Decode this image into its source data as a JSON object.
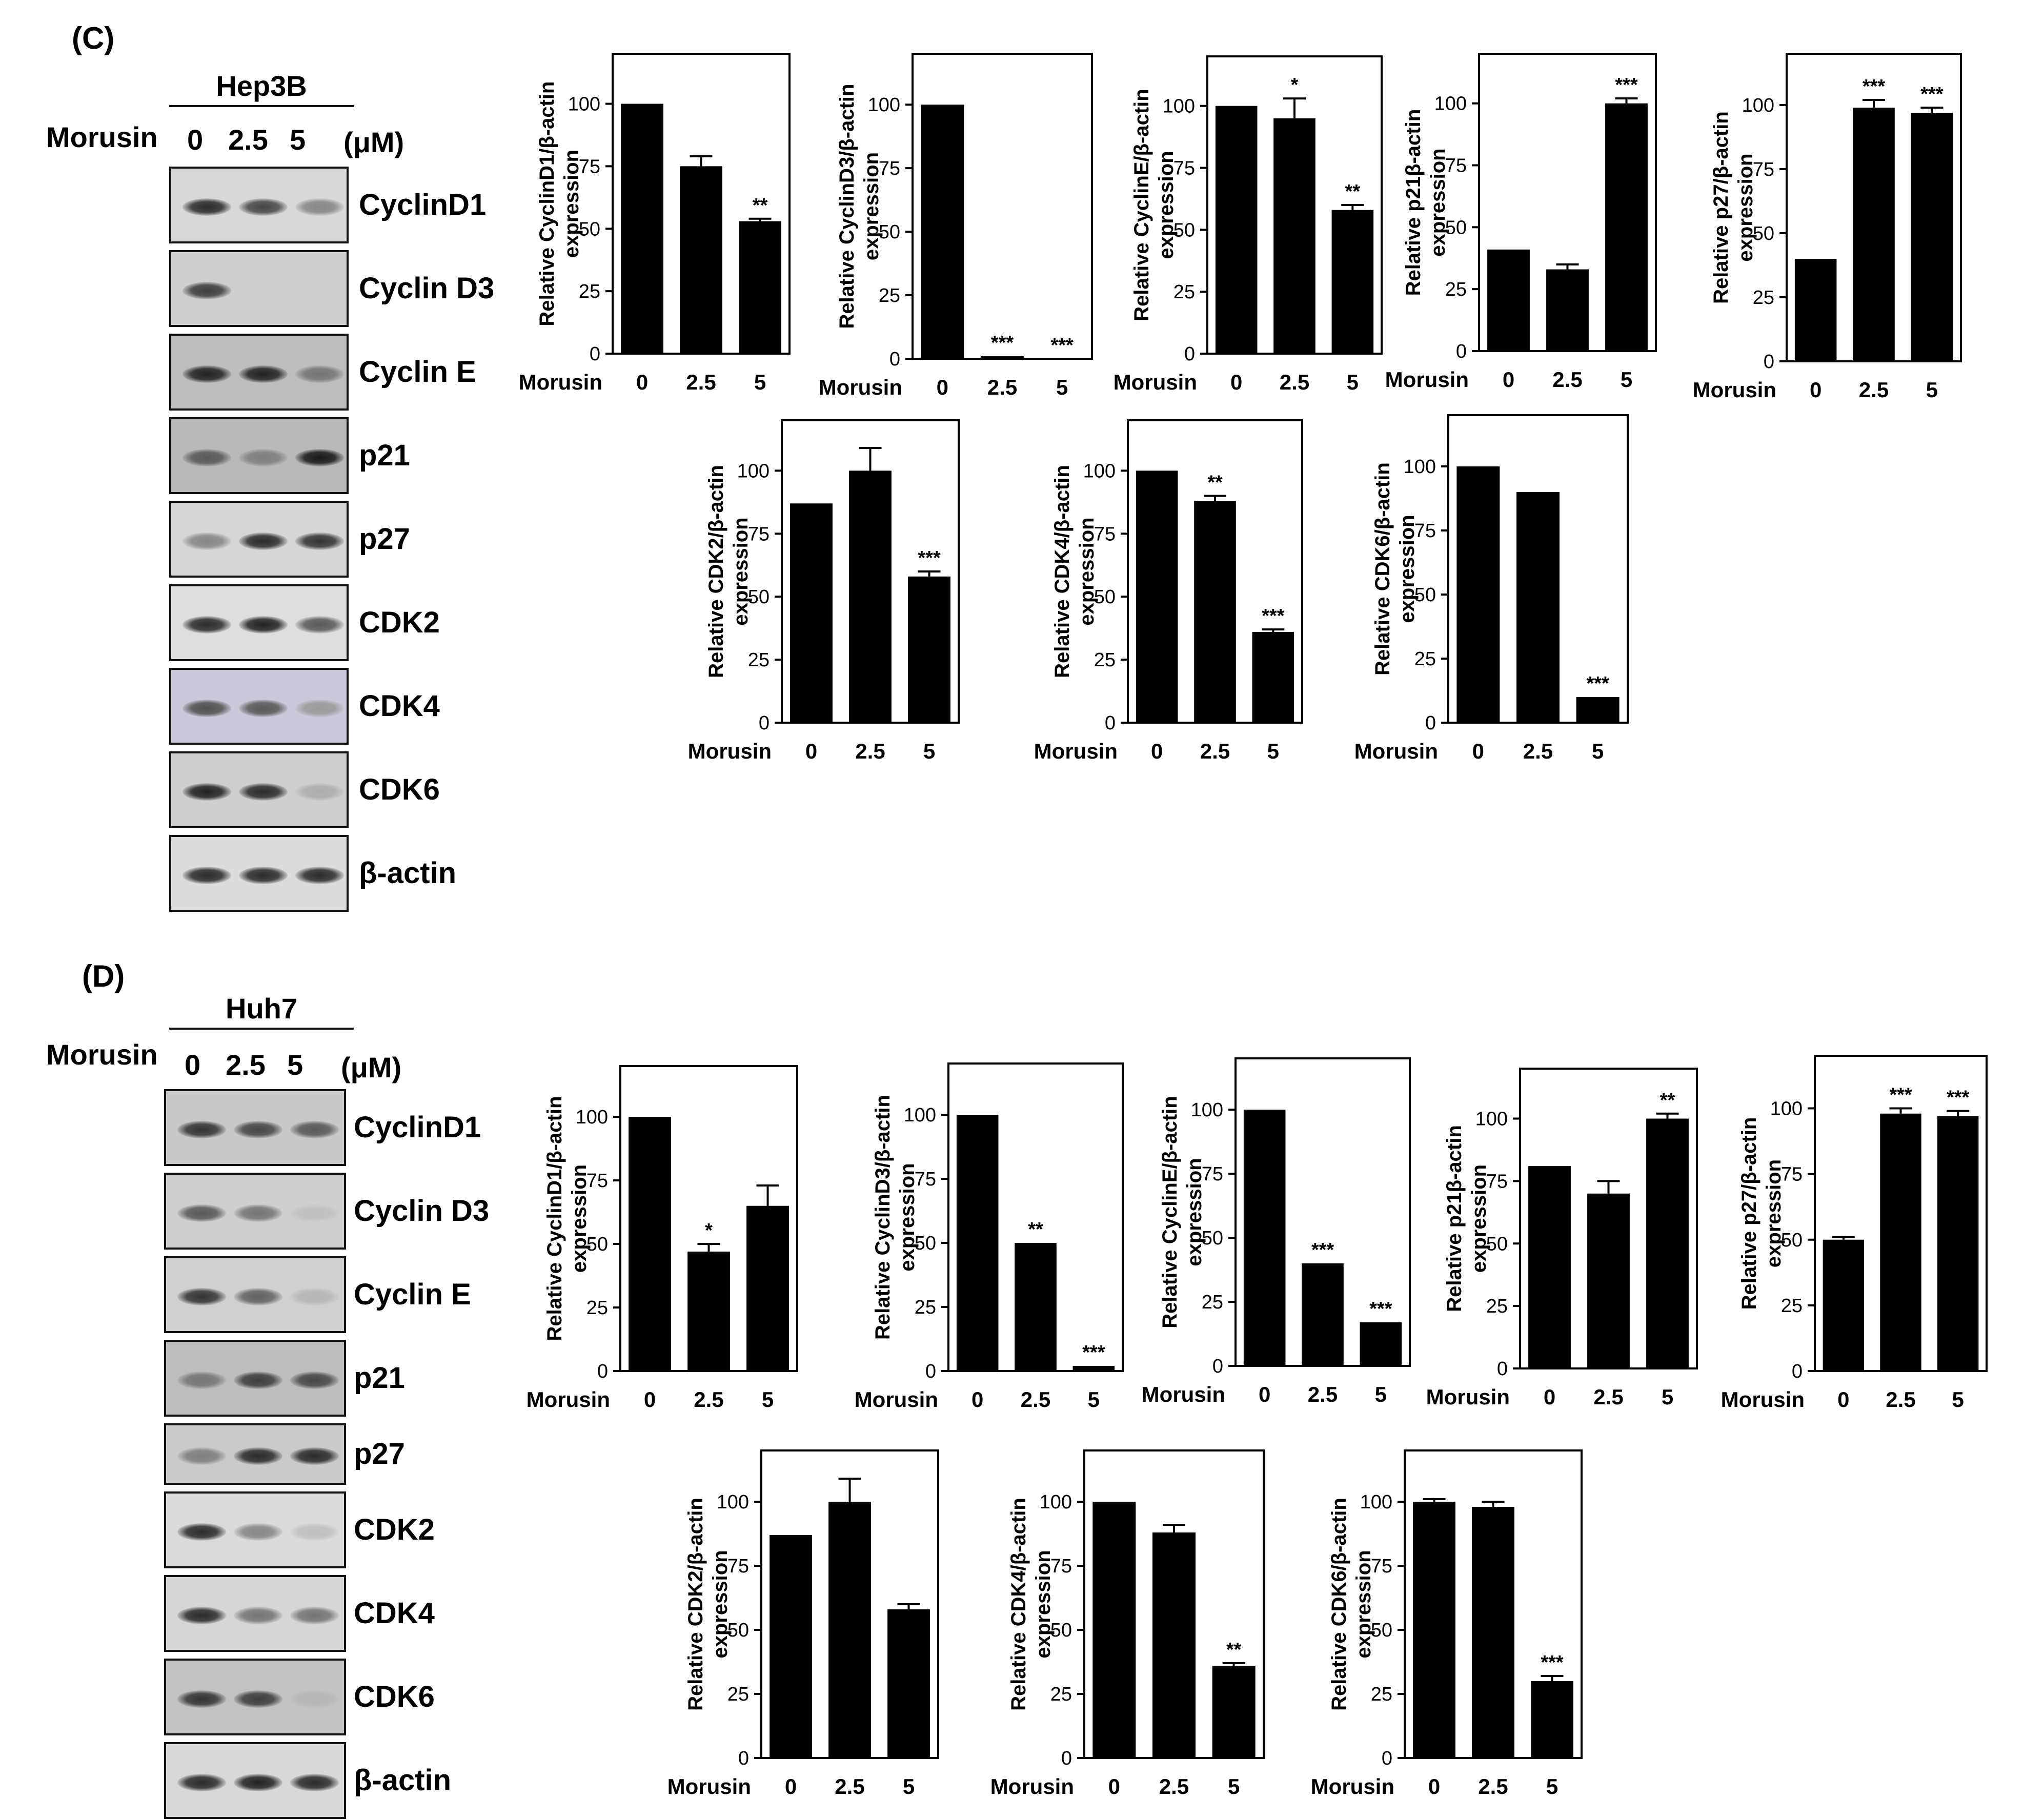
{
  "units_label": "(μM)",
  "morusin_label": "Morusin",
  "doses": [
    "0",
    "2.5",
    "5"
  ],
  "panels": [
    {
      "id": "C",
      "label": "(C)",
      "cell_line": "Hep3B",
      "blots": [
        {
          "label": "CyclinD1",
          "bg": "#d8d8d8",
          "bands": [
            0.85,
            0.7,
            0.35
          ]
        },
        {
          "label": "Cyclin D3",
          "bg": "#cfcfcf",
          "bands": [
            0.75,
            0.0,
            0.0
          ]
        },
        {
          "label": "Cyclin E",
          "bg": "#bdbdbd",
          "bands": [
            0.9,
            0.9,
            0.45
          ]
        },
        {
          "label": "p21",
          "bg": "#b9b9b9",
          "bands": [
            0.6,
            0.4,
            0.95
          ]
        },
        {
          "label": "p27",
          "bg": "#d6d6d6",
          "bands": [
            0.35,
            0.85,
            0.8
          ]
        },
        {
          "label": "CDK2",
          "bg": "#dedede",
          "bands": [
            0.85,
            0.9,
            0.6
          ]
        },
        {
          "label": "CDK4",
          "bg": "#c9c9da",
          "bands": [
            0.65,
            0.6,
            0.25
          ]
        },
        {
          "label": "CDK6",
          "bg": "#cfcfcf",
          "bands": [
            0.9,
            0.85,
            0.15
          ]
        },
        {
          "label": "β-actin",
          "bg": "#dcdcdc",
          "bands": [
            0.85,
            0.85,
            0.85
          ]
        }
      ]
    },
    {
      "id": "D",
      "label": "(D)",
      "cell_line": "Huh7",
      "blots": [
        {
          "label": "CyclinD1",
          "bg": "#c8c8c8",
          "bands": [
            0.8,
            0.7,
            0.6
          ]
        },
        {
          "label": "Cyclin D3",
          "bg": "#cfcfcf",
          "bands": [
            0.6,
            0.45,
            0.05
          ]
        },
        {
          "label": "Cyclin E",
          "bg": "#d0d0d0",
          "bands": [
            0.8,
            0.55,
            0.1
          ]
        },
        {
          "label": "p21",
          "bg": "#bdbdbd",
          "bands": [
            0.45,
            0.75,
            0.7
          ]
        },
        {
          "label": "p27",
          "bg": "#cacaca",
          "bands": [
            0.4,
            0.85,
            0.85
          ]
        },
        {
          "label": "CDK2",
          "bg": "#dadada",
          "bands": [
            0.85,
            0.35,
            0.05
          ]
        },
        {
          "label": "CDK4",
          "bg": "#d6d6d6",
          "bands": [
            0.85,
            0.45,
            0.45
          ]
        },
        {
          "label": "CDK6",
          "bg": "#c2c2c2",
          "bands": [
            0.8,
            0.75,
            0.1
          ]
        },
        {
          "label": "β-actin",
          "bg": "#d8d8d8",
          "bands": [
            0.85,
            0.9,
            0.85
          ]
        }
      ]
    }
  ],
  "chart_data": [
    {
      "panel": "C",
      "type": "bar",
      "categories": [
        "0",
        "2.5",
        "5"
      ],
      "xlabel": "Morusin",
      "ylabel": [
        "Relative CyclinD1/β-actin",
        "expression"
      ],
      "ylim": [
        0,
        120
      ],
      "yticks": [
        0,
        25,
        50,
        75,
        100
      ],
      "values": [
        100,
        75,
        53
      ],
      "errors": [
        0,
        4,
        1
      ],
      "significance": [
        "",
        "",
        "**"
      ]
    },
    {
      "panel": "C",
      "type": "bar",
      "categories": [
        "0",
        "2.5",
        "5"
      ],
      "xlabel": "Morusin",
      "ylabel": [
        "Relative CyclinD3/β-actin",
        "expression"
      ],
      "ylim": [
        0,
        120
      ],
      "yticks": [
        0,
        25,
        50,
        75,
        100
      ],
      "values": [
        100,
        1,
        0
      ],
      "errors": [
        0,
        0,
        0
      ],
      "significance": [
        "",
        "***",
        "***"
      ]
    },
    {
      "panel": "C",
      "type": "bar",
      "categories": [
        "0",
        "2.5",
        "5"
      ],
      "xlabel": "Morusin",
      "ylabel": [
        "Relative CyclinE/β-actin",
        "expression"
      ],
      "ylim": [
        0,
        120
      ],
      "yticks": [
        0,
        25,
        50,
        75,
        100
      ],
      "values": [
        100,
        95,
        58
      ],
      "errors": [
        0,
        8,
        2
      ],
      "significance": [
        "",
        "*",
        "**"
      ]
    },
    {
      "panel": "C",
      "type": "bar",
      "categories": [
        "0",
        "2.5",
        "5"
      ],
      "xlabel": "Morusin",
      "ylabel": [
        "Relative p21β-actin",
        "expression"
      ],
      "ylim": [
        0,
        120
      ],
      "yticks": [
        0,
        25,
        50,
        75,
        100
      ],
      "values": [
        41,
        33,
        100
      ],
      "errors": [
        0,
        2,
        2
      ],
      "significance": [
        "",
        "",
        "***"
      ]
    },
    {
      "panel": "C",
      "type": "bar",
      "categories": [
        "0",
        "2.5",
        "5"
      ],
      "xlabel": "Morusin",
      "ylabel": [
        "Relative p27/β-actin",
        "expression"
      ],
      "ylim": [
        0,
        120
      ],
      "yticks": [
        0,
        25,
        50,
        75,
        100
      ],
      "values": [
        40,
        99,
        97
      ],
      "errors": [
        0,
        3,
        2
      ],
      "significance": [
        "",
        "***",
        "***"
      ]
    },
    {
      "panel": "C",
      "type": "bar",
      "categories": [
        "0",
        "2.5",
        "5"
      ],
      "xlabel": "Morusin",
      "ylabel": [
        "Relative CDK2/β-actin",
        "expression"
      ],
      "ylim": [
        0,
        120
      ],
      "yticks": [
        0,
        25,
        50,
        75,
        100
      ],
      "values": [
        87,
        100,
        58
      ],
      "errors": [
        0,
        9,
        2
      ],
      "significance": [
        "",
        "",
        "***"
      ]
    },
    {
      "panel": "C",
      "type": "bar",
      "categories": [
        "0",
        "2.5",
        "5"
      ],
      "xlabel": "Morusin",
      "ylabel": [
        "Relative CDK4/β-actin",
        "expression"
      ],
      "ylim": [
        0,
        120
      ],
      "yticks": [
        0,
        25,
        50,
        75,
        100
      ],
      "values": [
        100,
        88,
        36
      ],
      "errors": [
        0,
        2,
        1
      ],
      "significance": [
        "",
        "**",
        "***"
      ]
    },
    {
      "panel": "C",
      "type": "bar",
      "categories": [
        "0",
        "2.5",
        "5"
      ],
      "xlabel": "Morusin",
      "ylabel": [
        "Relative CDK6/β-actin",
        "expression"
      ],
      "ylim": [
        0,
        120
      ],
      "yticks": [
        0,
        25,
        50,
        75,
        100
      ],
      "values": [
        100,
        90,
        10
      ],
      "errors": [
        0,
        0,
        0
      ],
      "significance": [
        "",
        "",
        "***"
      ]
    },
    {
      "panel": "D",
      "type": "bar",
      "categories": [
        "0",
        "2.5",
        "5"
      ],
      "xlabel": "Morusin",
      "ylabel": [
        "Relative CyclinD1/β-actin",
        "expression"
      ],
      "ylim": [
        0,
        120
      ],
      "yticks": [
        0,
        25,
        50,
        75,
        100
      ],
      "values": [
        100,
        47,
        65
      ],
      "errors": [
        0,
        3,
        8
      ],
      "significance": [
        "",
        "*",
        ""
      ]
    },
    {
      "panel": "D",
      "type": "bar",
      "categories": [
        "0",
        "2.5",
        "5"
      ],
      "xlabel": "Morusin",
      "ylabel": [
        "Relative CyclinD3/β-actin",
        "expression"
      ],
      "ylim": [
        0,
        120
      ],
      "yticks": [
        0,
        25,
        50,
        75,
        100
      ],
      "values": [
        100,
        50,
        2
      ],
      "errors": [
        0,
        0,
        0
      ],
      "significance": [
        "",
        "**",
        "***"
      ]
    },
    {
      "panel": "D",
      "type": "bar",
      "categories": [
        "0",
        "2.5",
        "5"
      ],
      "xlabel": "Morusin",
      "ylabel": [
        "Relative CyclinE/β-actin",
        "expression"
      ],
      "ylim": [
        0,
        120
      ],
      "yticks": [
        0,
        25,
        50,
        75,
        100
      ],
      "values": [
        100,
        40,
        17
      ],
      "errors": [
        0,
        0,
        0
      ],
      "significance": [
        "",
        "***",
        "***"
      ]
    },
    {
      "panel": "D",
      "type": "bar",
      "categories": [
        "0",
        "2.5",
        "5"
      ],
      "xlabel": "Morusin",
      "ylabel": [
        "Relative p21β-actin",
        "expression"
      ],
      "ylim": [
        0,
        120
      ],
      "yticks": [
        0,
        25,
        50,
        75,
        100
      ],
      "values": [
        81,
        70,
        100
      ],
      "errors": [
        0,
        5,
        2
      ],
      "significance": [
        "",
        "",
        "**"
      ]
    },
    {
      "panel": "D",
      "type": "bar",
      "categories": [
        "0",
        "2.5",
        "5"
      ],
      "xlabel": "Morusin",
      "ylabel": [
        "Relative p27/β-actin",
        "expression"
      ],
      "ylim": [
        0,
        120
      ],
      "yticks": [
        0,
        25,
        50,
        75,
        100
      ],
      "values": [
        50,
        98,
        97
      ],
      "errors": [
        1,
        2,
        2
      ],
      "significance": [
        "",
        "***",
        "***"
      ]
    },
    {
      "panel": "D",
      "type": "bar",
      "categories": [
        "0",
        "2.5",
        "5"
      ],
      "xlabel": "Morusin",
      "ylabel": [
        "Relative CDK2/β-actin",
        "expression"
      ],
      "ylim": [
        0,
        120
      ],
      "yticks": [
        0,
        25,
        50,
        75,
        100
      ],
      "values": [
        87,
        100,
        58
      ],
      "errors": [
        0,
        9,
        2
      ],
      "significance": [
        "",
        "",
        ""
      ]
    },
    {
      "panel": "D",
      "type": "bar",
      "categories": [
        "0",
        "2.5",
        "5"
      ],
      "xlabel": "Morusin",
      "ylabel": [
        "Relative CDK4/β-actin",
        "expression"
      ],
      "ylim": [
        0,
        120
      ],
      "yticks": [
        0,
        25,
        50,
        75,
        100
      ],
      "values": [
        100,
        88,
        36
      ],
      "errors": [
        0,
        3,
        1
      ],
      "significance": [
        "",
        "",
        "**"
      ]
    },
    {
      "panel": "D",
      "type": "bar",
      "categories": [
        "0",
        "2.5",
        "5"
      ],
      "xlabel": "Morusin",
      "ylabel": [
        "Relative CDK6/β-actin",
        "expression"
      ],
      "ylim": [
        0,
        120
      ],
      "yticks": [
        0,
        25,
        50,
        75,
        100
      ],
      "values": [
        100,
        98,
        30
      ],
      "errors": [
        1,
        2,
        2
      ],
      "significance": [
        "",
        "",
        "***"
      ]
    }
  ]
}
